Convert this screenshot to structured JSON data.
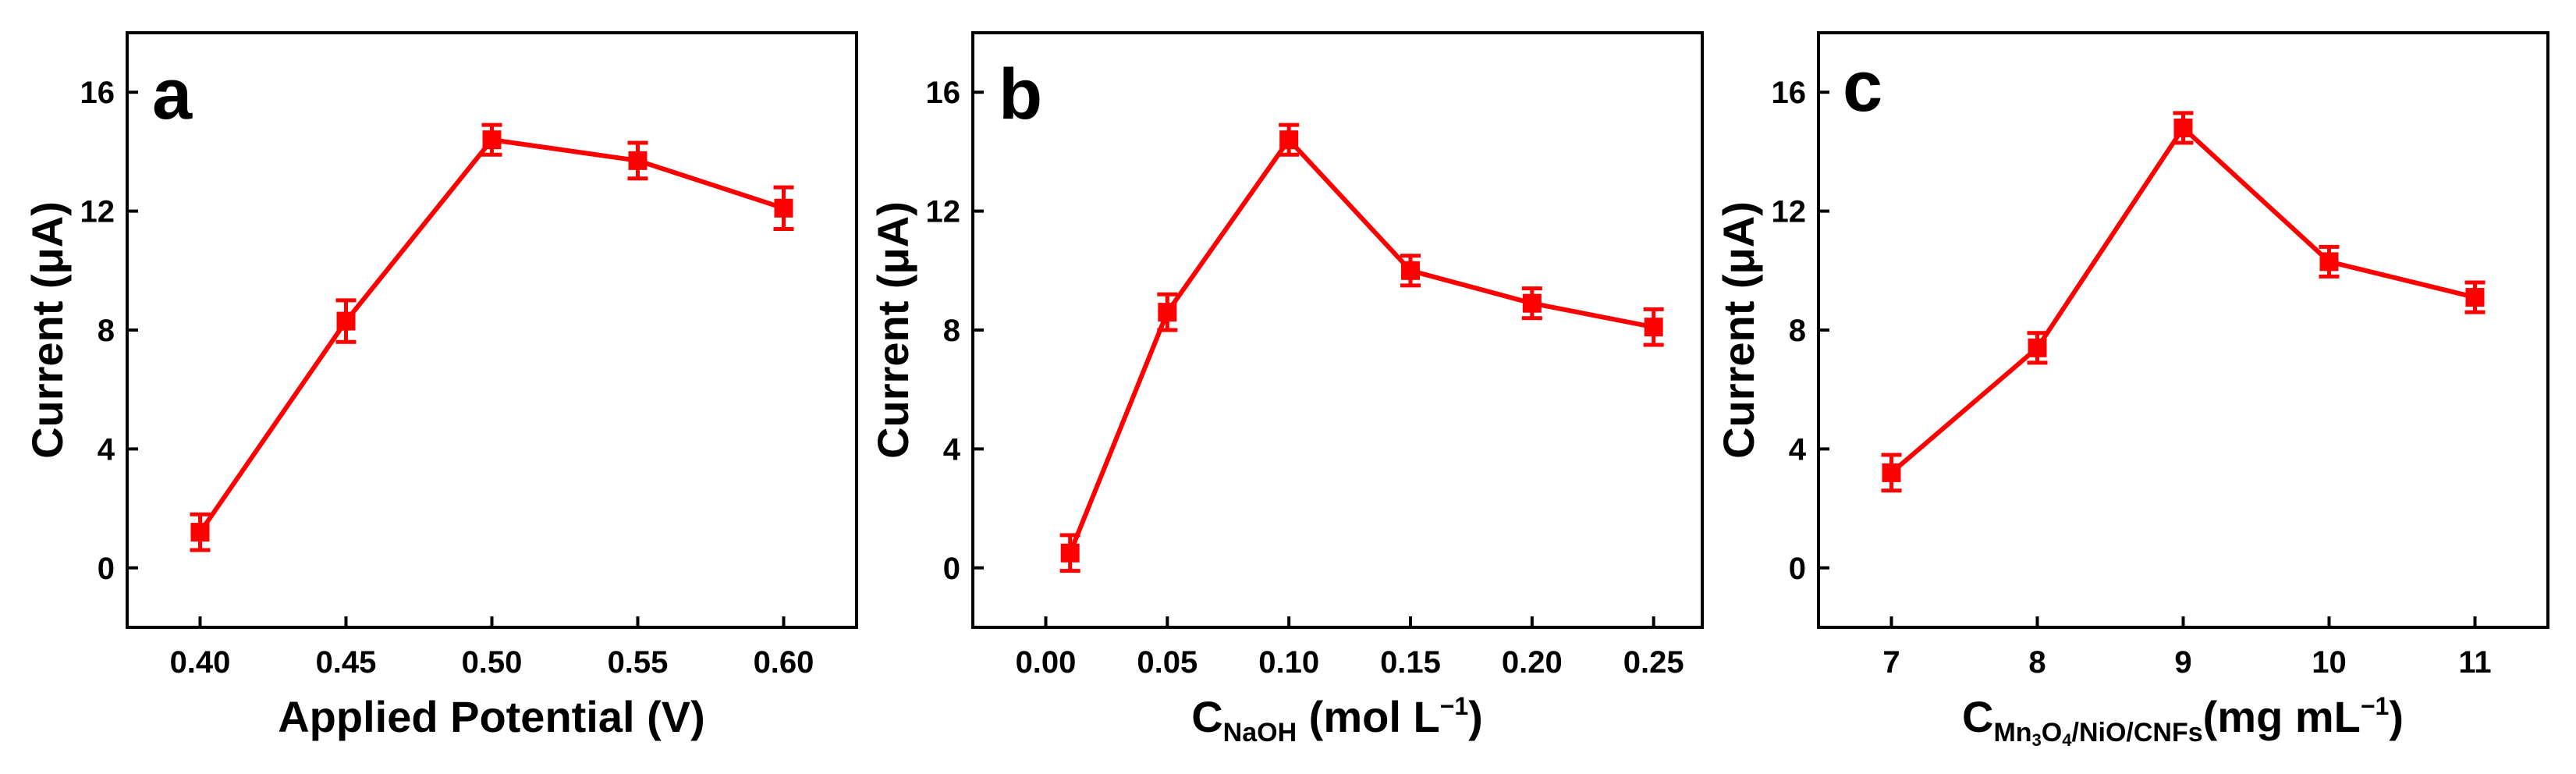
{
  "colors": {
    "series": "#ff0000",
    "axis": "#000000",
    "background": "#ffffff"
  },
  "chart_data": [
    {
      "type": "line",
      "panel_label": "a",
      "xlabel": "Applied Potential (V)",
      "ylabel": "Current (μA)",
      "x": [
        0.4,
        0.45,
        0.5,
        0.55,
        0.6
      ],
      "y": [
        1.2,
        8.3,
        14.4,
        13.7,
        12.1
      ],
      "yerr": [
        0.6,
        0.7,
        0.5,
        0.6,
        0.7
      ],
      "xlim": [
        0.375,
        0.625
      ],
      "ylim": [
        -2,
        18
      ],
      "xticks": [
        0.4,
        0.45,
        0.5,
        0.55,
        0.6
      ],
      "xtick_labels": [
        "0.40",
        "0.45",
        "0.50",
        "0.55",
        "0.60"
      ],
      "yticks": [
        0,
        4,
        8,
        12,
        16
      ],
      "ytick_labels": [
        "0",
        "4",
        "8",
        "12",
        "16"
      ]
    },
    {
      "type": "line",
      "panel_label": "b",
      "xlabel_main": "C",
      "xlabel_sub": "NaOH",
      "xlabel_rest": " (mol L",
      "xlabel_sup": "−1",
      "xlabel_end": ")",
      "ylabel": "Current (μA)",
      "x": [
        0.01,
        0.05,
        0.1,
        0.15,
        0.2,
        0.25
      ],
      "y": [
        0.5,
        8.6,
        14.4,
        10.0,
        8.9,
        8.1
      ],
      "yerr": [
        0.6,
        0.6,
        0.5,
        0.5,
        0.5,
        0.6
      ],
      "xlim": [
        -0.03,
        0.27
      ],
      "ylim": [
        -2,
        18
      ],
      "xticks": [
        0.0,
        0.05,
        0.1,
        0.15,
        0.2,
        0.25
      ],
      "xtick_labels": [
        "0.00",
        "0.05",
        "0.10",
        "0.15",
        "0.20",
        "0.25"
      ],
      "yticks": [
        0,
        4,
        8,
        12,
        16
      ],
      "ytick_labels": [
        "0",
        "4",
        "8",
        "12",
        "16"
      ]
    },
    {
      "type": "line",
      "panel_label": "c",
      "xlabel_main": "C",
      "xlabel_sub_parts": [
        "Mn",
        "3",
        "O",
        "4",
        "/NiO/CNFs"
      ],
      "xlabel_rest": "(mg mL",
      "xlabel_sup": "−1",
      "xlabel_end": ")",
      "ylabel": "Current (μA)",
      "x": [
        7,
        8,
        9,
        10,
        11
      ],
      "y": [
        3.2,
        7.4,
        14.8,
        10.3,
        9.1
      ],
      "yerr": [
        0.6,
        0.5,
        0.5,
        0.5,
        0.5
      ],
      "xlim": [
        6.5,
        11.5
      ],
      "ylim": [
        -2,
        18
      ],
      "xticks": [
        7,
        8,
        9,
        10,
        11
      ],
      "xtick_labels": [
        "7",
        "8",
        "9",
        "10",
        "11"
      ],
      "yticks": [
        0,
        4,
        8,
        12,
        16
      ],
      "ytick_labels": [
        "0",
        "4",
        "8",
        "12",
        "16"
      ]
    }
  ]
}
